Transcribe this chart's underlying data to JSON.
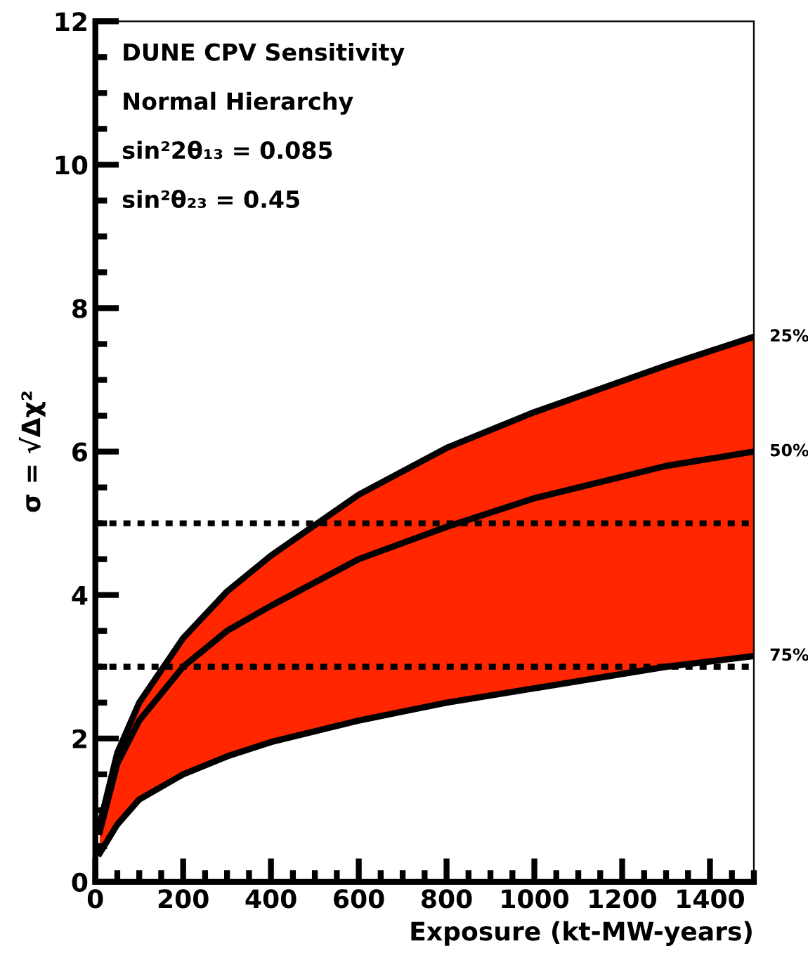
{
  "chart_data": {
    "type": "line",
    "xlabel": "Exposure (kt-MW-years)",
    "ylabel": "σ = √Δχ²",
    "xlim": [
      0,
      1500
    ],
    "xticks": [
      0,
      200,
      400,
      600,
      800,
      1000,
      1200,
      1400
    ],
    "ylim": [
      0,
      12
    ],
    "yticks": [
      0,
      2,
      4,
      6,
      8,
      10,
      12
    ],
    "annotations": [
      "DUNE CPV Sensitivity",
      "Normal Hierarchy",
      "sin²2θ₁₃ = 0.085",
      "sin²θ₂₃ = 0.45"
    ],
    "ref_lines": [
      {
        "axis": "y",
        "value": 3,
        "line_style": "dotted",
        "color": "#000000"
      },
      {
        "axis": "y",
        "value": 5,
        "line_style": "dotted",
        "color": "#000000"
      }
    ],
    "x": [
      10,
      50,
      100,
      200,
      300,
      400,
      600,
      800,
      1000,
      1300,
      1500
    ],
    "series": [
      {
        "type": "area",
        "name": "25%",
        "color": "#ff2600",
        "values": [
          0.8,
          1.8,
          2.5,
          3.4,
          4.05,
          4.55,
          5.4,
          6.05,
          6.55,
          7.2,
          7.6
        ]
      },
      {
        "type": "line",
        "name": "50%",
        "color": "#000000",
        "values": [
          0.7,
          1.65,
          2.25,
          3.0,
          3.5,
          3.85,
          4.5,
          4.95,
          5.35,
          5.8,
          6.0
        ]
      },
      {
        "type": "line",
        "name": "75%",
        "color": "#000000",
        "values": [
          0.4,
          0.8,
          1.15,
          1.5,
          1.75,
          1.95,
          2.25,
          2.5,
          2.7,
          3.0,
          3.15
        ]
      }
    ],
    "grid": false,
    "legend": false,
    "marker": "none",
    "line_style": "solid"
  }
}
